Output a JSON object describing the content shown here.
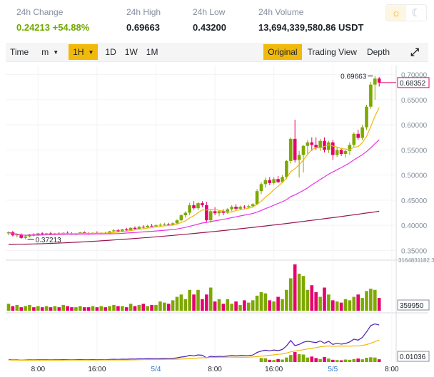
{
  "stats": [
    {
      "label": "24h Change",
      "value": "0.24213 +54.88%",
      "accent": "green"
    },
    {
      "label": "24h High",
      "value": "0.69663"
    },
    {
      "label": "24h Low",
      "value": "0.43200"
    },
    {
      "label": "24h Volume",
      "value": "13,694,339,580.86 USDT"
    }
  ],
  "theme": {
    "light_icon": "☼",
    "dark_icon": "☾"
  },
  "toolbar": {
    "time_label": "Time",
    "minute_label": "m",
    "interval_selected": "1H",
    "intervals": [
      "1D",
      "1W",
      "1M"
    ],
    "views": [
      "Original",
      "Trading View",
      "Depth"
    ],
    "view_selected": "Original",
    "expand_icon": "⤢"
  },
  "chart_data": {
    "type": "candlestick",
    "price_ticks": [
      "0.70000",
      "0.65000",
      "0.60000",
      "0.55000",
      "0.50000",
      "0.45000",
      "0.40000",
      "0.35000"
    ],
    "price_range": [
      0.335,
      0.715
    ],
    "high_marker": "0.69663",
    "low_marker": "0.37213",
    "last_price": "0.68352",
    "volume_max_label": "3164831182.3",
    "volume_last_label": "359950",
    "indicator_last_label": "0.01036",
    "x_ticks": [
      {
        "label": "8:00",
        "index": 7,
        "accent": false
      },
      {
        "label": "16:00",
        "index": 21,
        "accent": false
      },
      {
        "label": "5/4",
        "index": 35,
        "accent": true
      },
      {
        "label": "8:00",
        "index": 49,
        "accent": false
      },
      {
        "label": "16:00",
        "index": 63,
        "accent": false
      },
      {
        "label": "5/5",
        "index": 77,
        "accent": true
      },
      {
        "label": "8:00",
        "index": 91,
        "accent": false
      }
    ],
    "colors": {
      "up": "#7ea800",
      "down": "#e6006e",
      "ma7": "#f0b90b",
      "ma25": "#e633e6",
      "ma99": "#98164f",
      "vol_up": "#7ea800",
      "vol_down": "#e6006e"
    },
    "candles": [
      {
        "o": 0.384,
        "h": 0.388,
        "l": 0.38,
        "c": 0.386
      },
      {
        "o": 0.386,
        "h": 0.389,
        "l": 0.378,
        "c": 0.38
      },
      {
        "o": 0.38,
        "h": 0.383,
        "l": 0.376,
        "c": 0.382
      },
      {
        "o": 0.382,
        "h": 0.384,
        "l": 0.373,
        "c": 0.375
      },
      {
        "o": 0.375,
        "h": 0.38,
        "l": 0.372,
        "c": 0.378
      },
      {
        "o": 0.378,
        "h": 0.383,
        "l": 0.376,
        "c": 0.382
      },
      {
        "o": 0.382,
        "h": 0.384,
        "l": 0.378,
        "c": 0.38
      },
      {
        "o": 0.38,
        "h": 0.385,
        "l": 0.379,
        "c": 0.384
      },
      {
        "o": 0.384,
        "h": 0.386,
        "l": 0.381,
        "c": 0.383
      },
      {
        "o": 0.383,
        "h": 0.385,
        "l": 0.38,
        "c": 0.384
      },
      {
        "o": 0.384,
        "h": 0.387,
        "l": 0.381,
        "c": 0.382
      },
      {
        "o": 0.382,
        "h": 0.385,
        "l": 0.38,
        "c": 0.384
      },
      {
        "o": 0.384,
        "h": 0.386,
        "l": 0.382,
        "c": 0.383
      },
      {
        "o": 0.383,
        "h": 0.386,
        "l": 0.381,
        "c": 0.385
      },
      {
        "o": 0.385,
        "h": 0.388,
        "l": 0.382,
        "c": 0.384
      },
      {
        "o": 0.384,
        "h": 0.386,
        "l": 0.381,
        "c": 0.382
      },
      {
        "o": 0.382,
        "h": 0.385,
        "l": 0.38,
        "c": 0.384
      },
      {
        "o": 0.384,
        "h": 0.387,
        "l": 0.382,
        "c": 0.386
      },
      {
        "o": 0.386,
        "h": 0.388,
        "l": 0.383,
        "c": 0.384
      },
      {
        "o": 0.384,
        "h": 0.386,
        "l": 0.381,
        "c": 0.383
      },
      {
        "o": 0.383,
        "h": 0.386,
        "l": 0.382,
        "c": 0.385
      },
      {
        "o": 0.385,
        "h": 0.388,
        "l": 0.383,
        "c": 0.384
      },
      {
        "o": 0.384,
        "h": 0.386,
        "l": 0.382,
        "c": 0.385
      },
      {
        "o": 0.385,
        "h": 0.387,
        "l": 0.383,
        "c": 0.384
      },
      {
        "o": 0.384,
        "h": 0.389,
        "l": 0.383,
        "c": 0.388
      },
      {
        "o": 0.388,
        "h": 0.392,
        "l": 0.385,
        "c": 0.39
      },
      {
        "o": 0.39,
        "h": 0.393,
        "l": 0.386,
        "c": 0.388
      },
      {
        "o": 0.388,
        "h": 0.393,
        "l": 0.387,
        "c": 0.392
      },
      {
        "o": 0.392,
        "h": 0.395,
        "l": 0.389,
        "c": 0.39
      },
      {
        "o": 0.39,
        "h": 0.396,
        "l": 0.389,
        "c": 0.395
      },
      {
        "o": 0.395,
        "h": 0.398,
        "l": 0.391,
        "c": 0.393
      },
      {
        "o": 0.393,
        "h": 0.399,
        "l": 0.392,
        "c": 0.397
      },
      {
        "o": 0.397,
        "h": 0.4,
        "l": 0.394,
        "c": 0.396
      },
      {
        "o": 0.396,
        "h": 0.401,
        "l": 0.395,
        "c": 0.399
      },
      {
        "o": 0.399,
        "h": 0.403,
        "l": 0.397,
        "c": 0.398
      },
      {
        "o": 0.398,
        "h": 0.402,
        "l": 0.396,
        "c": 0.4
      },
      {
        "o": 0.4,
        "h": 0.404,
        "l": 0.398,
        "c": 0.401
      },
      {
        "o": 0.401,
        "h": 0.405,
        "l": 0.399,
        "c": 0.402
      },
      {
        "o": 0.402,
        "h": 0.405,
        "l": 0.4,
        "c": 0.401
      },
      {
        "o": 0.401,
        "h": 0.406,
        "l": 0.399,
        "c": 0.404
      },
      {
        "o": 0.404,
        "h": 0.412,
        "l": 0.402,
        "c": 0.41
      },
      {
        "o": 0.41,
        "h": 0.422,
        "l": 0.408,
        "c": 0.42
      },
      {
        "o": 0.42,
        "h": 0.428,
        "l": 0.415,
        "c": 0.425
      },
      {
        "o": 0.425,
        "h": 0.445,
        "l": 0.42,
        "c": 0.44
      },
      {
        "o": 0.44,
        "h": 0.448,
        "l": 0.431,
        "c": 0.434
      },
      {
        "o": 0.434,
        "h": 0.446,
        "l": 0.43,
        "c": 0.444
      },
      {
        "o": 0.444,
        "h": 0.448,
        "l": 0.436,
        "c": 0.44
      },
      {
        "o": 0.44,
        "h": 0.447,
        "l": 0.405,
        "c": 0.41
      },
      {
        "o": 0.41,
        "h": 0.432,
        "l": 0.405,
        "c": 0.428
      },
      {
        "o": 0.428,
        "h": 0.436,
        "l": 0.42,
        "c": 0.424
      },
      {
        "o": 0.424,
        "h": 0.43,
        "l": 0.418,
        "c": 0.428
      },
      {
        "o": 0.428,
        "h": 0.432,
        "l": 0.42,
        "c": 0.425
      },
      {
        "o": 0.425,
        "h": 0.434,
        "l": 0.423,
        "c": 0.432
      },
      {
        "o": 0.432,
        "h": 0.44,
        "l": 0.428,
        "c": 0.437
      },
      {
        "o": 0.437,
        "h": 0.442,
        "l": 0.43,
        "c": 0.433
      },
      {
        "o": 0.433,
        "h": 0.439,
        "l": 0.431,
        "c": 0.437
      },
      {
        "o": 0.437,
        "h": 0.44,
        "l": 0.433,
        "c": 0.436
      },
      {
        "o": 0.436,
        "h": 0.441,
        "l": 0.434,
        "c": 0.438
      },
      {
        "o": 0.438,
        "h": 0.444,
        "l": 0.435,
        "c": 0.442
      },
      {
        "o": 0.442,
        "h": 0.472,
        "l": 0.44,
        "c": 0.468
      },
      {
        "o": 0.468,
        "h": 0.486,
        "l": 0.462,
        "c": 0.482
      },
      {
        "o": 0.482,
        "h": 0.495,
        "l": 0.475,
        "c": 0.49
      },
      {
        "o": 0.49,
        "h": 0.496,
        "l": 0.48,
        "c": 0.484
      },
      {
        "o": 0.484,
        "h": 0.496,
        "l": 0.481,
        "c": 0.492
      },
      {
        "o": 0.492,
        "h": 0.498,
        "l": 0.484,
        "c": 0.486
      },
      {
        "o": 0.486,
        "h": 0.5,
        "l": 0.484,
        "c": 0.496
      },
      {
        "o": 0.496,
        "h": 0.53,
        "l": 0.492,
        "c": 0.528
      },
      {
        "o": 0.528,
        "h": 0.575,
        "l": 0.523,
        "c": 0.572
      },
      {
        "o": 0.572,
        "h": 0.61,
        "l": 0.525,
        "c": 0.53
      },
      {
        "o": 0.53,
        "h": 0.548,
        "l": 0.495,
        "c": 0.54
      },
      {
        "o": 0.54,
        "h": 0.56,
        "l": 0.505,
        "c": 0.558
      },
      {
        "o": 0.558,
        "h": 0.57,
        "l": 0.54,
        "c": 0.565
      },
      {
        "o": 0.565,
        "h": 0.575,
        "l": 0.548,
        "c": 0.56
      },
      {
        "o": 0.56,
        "h": 0.575,
        "l": 0.55,
        "c": 0.555
      },
      {
        "o": 0.555,
        "h": 0.572,
        "l": 0.548,
        "c": 0.568
      },
      {
        "o": 0.568,
        "h": 0.575,
        "l": 0.545,
        "c": 0.55
      },
      {
        "o": 0.55,
        "h": 0.568,
        "l": 0.544,
        "c": 0.565
      },
      {
        "o": 0.565,
        "h": 0.57,
        "l": 0.53,
        "c": 0.54
      },
      {
        "o": 0.54,
        "h": 0.555,
        "l": 0.536,
        "c": 0.55
      },
      {
        "o": 0.55,
        "h": 0.554,
        "l": 0.538,
        "c": 0.542
      },
      {
        "o": 0.542,
        "h": 0.55,
        "l": 0.535,
        "c": 0.548
      },
      {
        "o": 0.548,
        "h": 0.565,
        "l": 0.54,
        "c": 0.56
      },
      {
        "o": 0.56,
        "h": 0.585,
        "l": 0.555,
        "c": 0.582
      },
      {
        "o": 0.582,
        "h": 0.59,
        "l": 0.57,
        "c": 0.574
      },
      {
        "o": 0.574,
        "h": 0.6,
        "l": 0.57,
        "c": 0.595
      },
      {
        "o": 0.595,
        "h": 0.64,
        "l": 0.59,
        "c": 0.636
      },
      {
        "o": 0.636,
        "h": 0.685,
        "l": 0.632,
        "c": 0.68
      },
      {
        "o": 0.68,
        "h": 0.697,
        "l": 0.65,
        "c": 0.692
      },
      {
        "o": 0.692,
        "h": 0.695,
        "l": 0.676,
        "c": 0.684
      }
    ],
    "volume": [
      6,
      4,
      5,
      3,
      4,
      5,
      3,
      4,
      3,
      4,
      3,
      4,
      3,
      5,
      4,
      3,
      3,
      4,
      3,
      3,
      4,
      3,
      4,
      3,
      4,
      5,
      4,
      4,
      3,
      6,
      4,
      5,
      6,
      4,
      5,
      5,
      8,
      7,
      6,
      9,
      12,
      14,
      10,
      18,
      14,
      18,
      10,
      14,
      20,
      8,
      10,
      6,
      10,
      6,
      8,
      5,
      9,
      7,
      9,
      13,
      16,
      15,
      9,
      8,
      12,
      10,
      18,
      28,
      40,
      32,
      30,
      18,
      22,
      16,
      12,
      20,
      14,
      9,
      8,
      7,
      10,
      9,
      12,
      14,
      11,
      17,
      19,
      18,
      11
    ]
  }
}
